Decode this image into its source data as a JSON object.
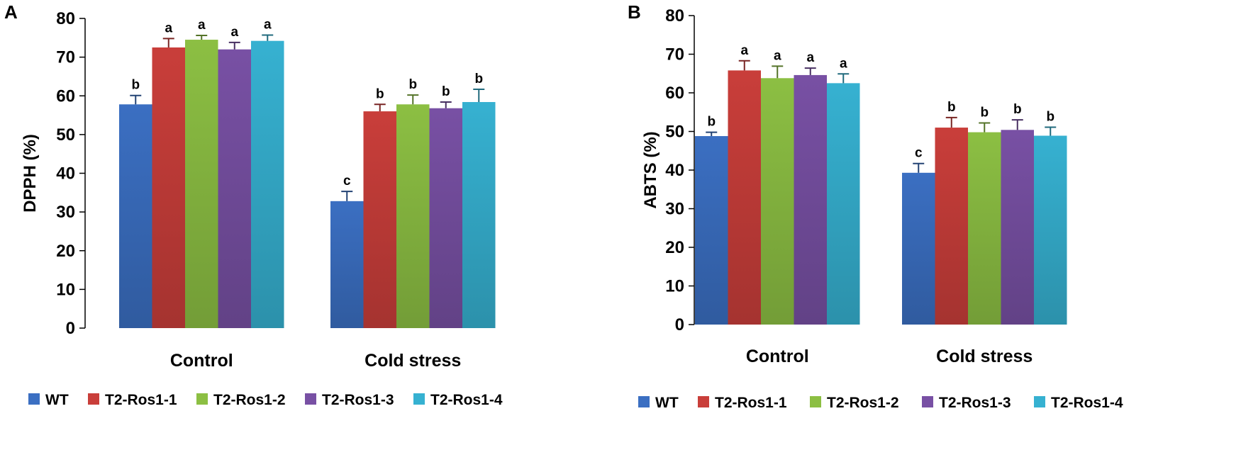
{
  "chart_data": [
    {
      "type": "bar",
      "panel": "A",
      "ylabel": "DPPH (%)",
      "ylim": [
        0,
        80
      ],
      "yticks": [
        0,
        10,
        20,
        30,
        40,
        50,
        60,
        70,
        80
      ],
      "categories": [
        "Control",
        "Cold stress"
      ],
      "series": [
        {
          "name": "WT",
          "color": "#3b6fc2",
          "values": [
            57.8,
            32.8
          ],
          "errors": [
            2.3,
            2.5
          ],
          "letters": [
            "b",
            "c"
          ]
        },
        {
          "name": "T2-Ros1-1",
          "color": "#c93e3a",
          "values": [
            72.5,
            56.0
          ],
          "errors": [
            2.3,
            1.8
          ],
          "letters": [
            "a",
            "b"
          ]
        },
        {
          "name": "T2-Ros1-2",
          "color": "#8cbf43",
          "values": [
            74.5,
            57.8
          ],
          "errors": [
            1.1,
            2.4
          ],
          "letters": [
            "a",
            "b"
          ]
        },
        {
          "name": "T2-Ros1-3",
          "color": "#7850a4",
          "values": [
            72.0,
            56.8
          ],
          "errors": [
            1.8,
            1.6
          ],
          "letters": [
            "a",
            "b"
          ]
        },
        {
          "name": "T2-Ros1-4",
          "color": "#36b1d1",
          "values": [
            74.2,
            58.4
          ],
          "errors": [
            1.5,
            3.3
          ],
          "letters": [
            "a",
            "b"
          ]
        }
      ]
    },
    {
      "type": "bar",
      "panel": "B",
      "ylabel": "ABTS (%)",
      "ylim": [
        0,
        80
      ],
      "yticks": [
        0,
        10,
        20,
        30,
        40,
        50,
        60,
        70,
        80
      ],
      "categories": [
        "Control",
        "Cold stress"
      ],
      "series": [
        {
          "name": "WT",
          "color": "#3b6fc2",
          "values": [
            48.8,
            39.3
          ],
          "errors": [
            1.0,
            2.4
          ],
          "letters": [
            "b",
            "c"
          ]
        },
        {
          "name": "T2-Ros1-1",
          "color": "#c93e3a",
          "values": [
            65.8,
            51.0
          ],
          "errors": [
            2.5,
            2.6
          ],
          "letters": [
            "a",
            "b"
          ]
        },
        {
          "name": "T2-Ros1-2",
          "color": "#8cbf43",
          "values": [
            63.8,
            49.8
          ],
          "errors": [
            3.1,
            2.4
          ],
          "letters": [
            "a",
            "b"
          ]
        },
        {
          "name": "T2-Ros1-3",
          "color": "#7850a4",
          "values": [
            64.6,
            50.4
          ],
          "errors": [
            1.8,
            2.6
          ],
          "letters": [
            "a",
            "b"
          ]
        },
        {
          "name": "T2-Ros1-4",
          "color": "#36b1d1",
          "values": [
            62.5,
            48.9
          ],
          "errors": [
            2.4,
            2.2
          ],
          "letters": [
            "a",
            "b"
          ]
        }
      ]
    }
  ]
}
